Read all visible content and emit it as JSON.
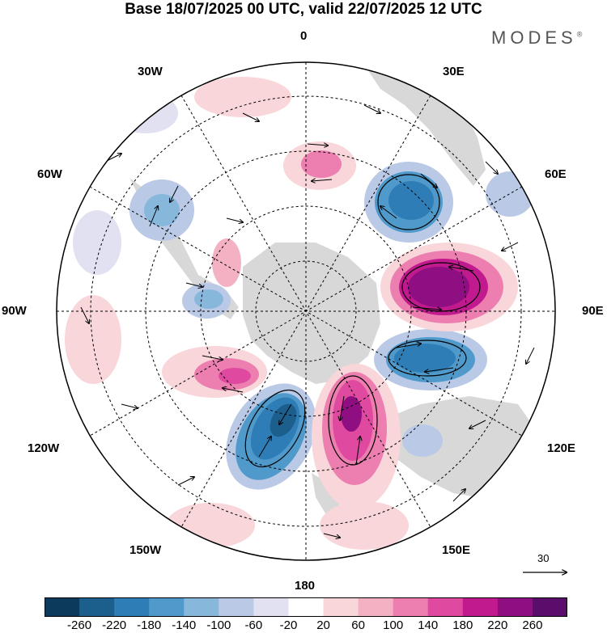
{
  "title": "Base 18/07/2025 00 UTC, valid 22/07/2025 12 UTC",
  "logo": "MODES",
  "logo_mark": "®",
  "longitude_labels": {
    "lon_0": "0",
    "lon_30e": "30E",
    "lon_60e": "60E",
    "lon_90e": "90E",
    "lon_120e": "120E",
    "lon_150e": "150E",
    "lon_180": "180",
    "lon_150w": "150W",
    "lon_120w": "120W",
    "lon_90w": "90W",
    "lon_60w": "60W",
    "lon_30w": "30W"
  },
  "vector_scale_label": "30",
  "colorbar": {
    "ticks": [
      "-260",
      "-220",
      "-180",
      "-140",
      "-100",
      "-60",
      "-20",
      "20",
      "60",
      "100",
      "140",
      "180",
      "220",
      "260"
    ],
    "colors": [
      "#0b3a5c",
      "#1c5f8c",
      "#2f7db6",
      "#4f9acb",
      "#88b7dc",
      "#b9c9e6",
      "#e2e1f1",
      "#ffffff",
      "#f8d6d9",
      "#f4b1c4",
      "#ec7fb0",
      "#df4aa0",
      "#c01a8e",
      "#8f0f82",
      "#5a0d6b"
    ]
  },
  "colors": {
    "strong_positive": "#5a0d6b",
    "positive": "#ec7fb0",
    "weak_positive": "#f8d6d9",
    "strong_negative": "#1c5f8c",
    "negative": "#4f9acb",
    "weak_negative": "#b9c9e6",
    "land": "#d4d4d4"
  }
}
